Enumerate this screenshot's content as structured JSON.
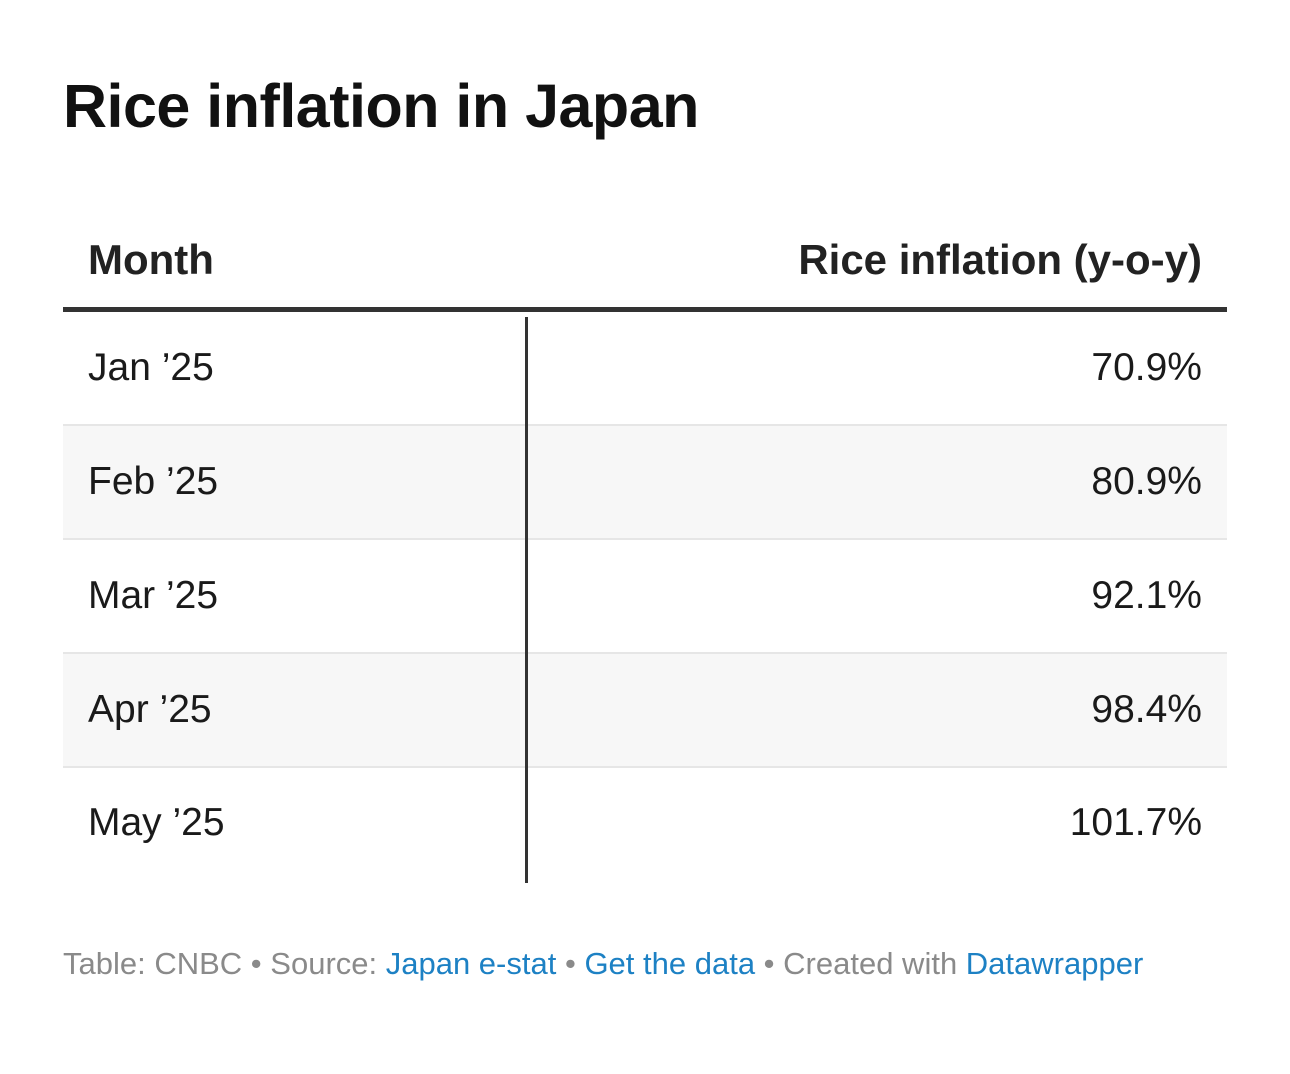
{
  "title": "Rice inflation in Japan",
  "colors": {
    "link": "#1d81c4",
    "text": "#111111",
    "muted": "#8a8a8a",
    "stripe": "#f7f7f7"
  },
  "chart_data": {
    "type": "table",
    "title": "Rice inflation in Japan",
    "columns": [
      "Month",
      "Rice inflation (y-o-y)"
    ],
    "rows": [
      {
        "month": "Jan ’25",
        "value": "70.9%"
      },
      {
        "month": "Feb ’25",
        "value": "80.9%"
      },
      {
        "month": "Mar ’25",
        "value": "92.1%"
      },
      {
        "month": "Apr ’25",
        "value": "98.4%"
      },
      {
        "month": "May ’25",
        "value": "101.7%"
      }
    ]
  },
  "footer": {
    "table_label": "Table: CNBC",
    "separator": " • ",
    "source_label": "Source: ",
    "source_link": "Japan e-stat",
    "data_link": "Get the data",
    "created_label": "Created with ",
    "created_link": "Datawrapper"
  }
}
